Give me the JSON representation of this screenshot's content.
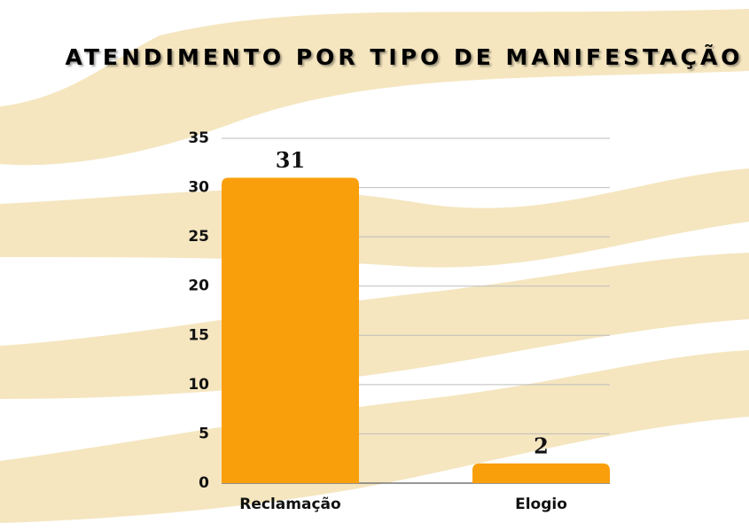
{
  "chart_data": {
    "type": "bar",
    "title": "ATENDIMENTO POR TIPO DE MANIFESTAÇÃO",
    "categories": [
      "Reclamação",
      "Elogio"
    ],
    "values": [
      31,
      2
    ],
    "color": "#fa9f0c",
    "ylim": [
      0,
      35
    ],
    "yticks": [
      0,
      5,
      10,
      15,
      20,
      25,
      30,
      35
    ],
    "grid": true
  }
}
